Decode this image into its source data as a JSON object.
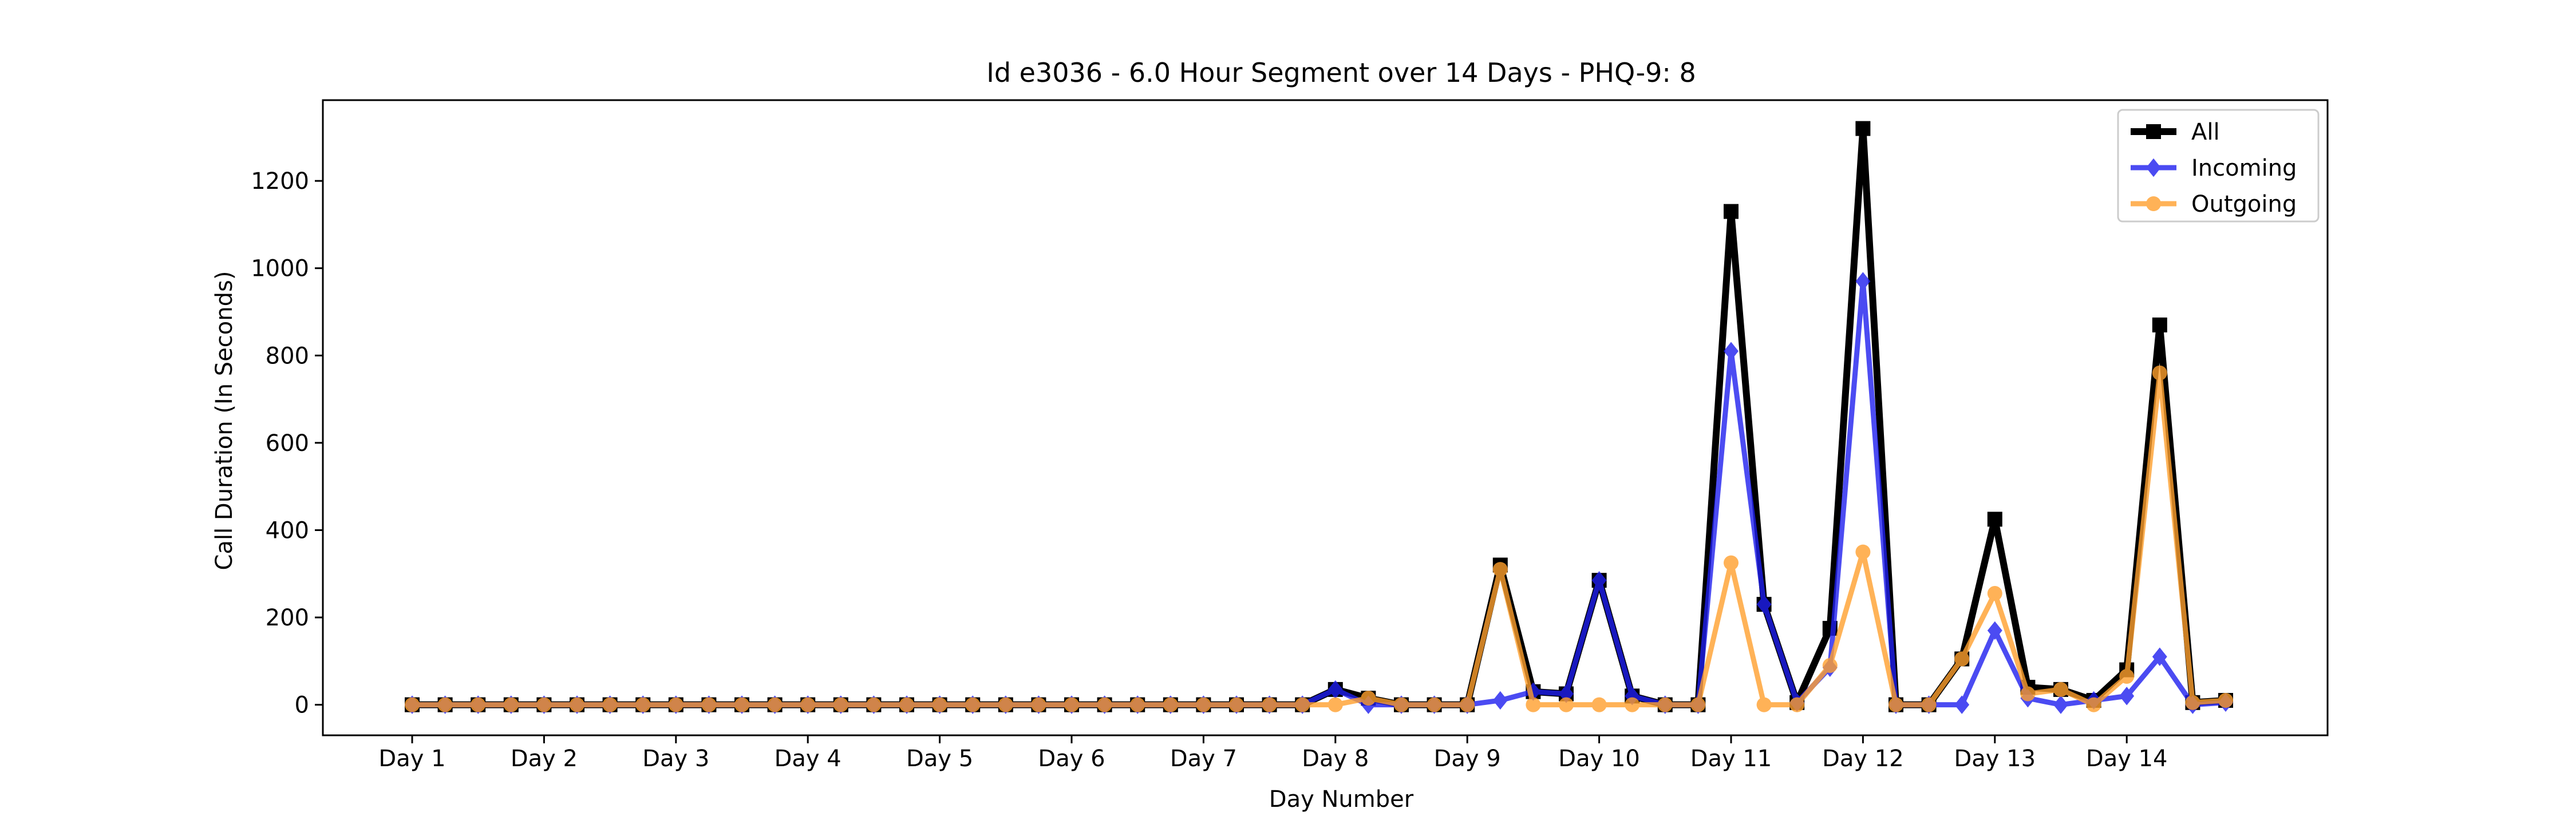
{
  "chart_data": {
    "type": "line",
    "title": "Id e3036 - 6.0 Hour Segment over 14 Days - PHQ-9: 8",
    "xlabel": "Day Number",
    "ylabel": "Call Duration (In Seconds)",
    "x_tick_labels": [
      "Day 1",
      "Day 2",
      "Day 3",
      "Day 4",
      "Day 5",
      "Day 6",
      "Day 7",
      "Day 8",
      "Day 9",
      "Day 10",
      "Day 11",
      "Day 12",
      "Day 13",
      "Day 14"
    ],
    "y_ticks": [
      0,
      200,
      400,
      600,
      800,
      1000,
      1200
    ],
    "ylim": [
      -70,
      1385
    ],
    "grid": false,
    "legend_position": "top-right",
    "series": [
      {
        "name": "All",
        "color": "#000000",
        "marker": "square",
        "values": [
          0,
          0,
          0,
          0,
          0,
          0,
          0,
          0,
          0,
          0,
          0,
          0,
          0,
          0,
          0,
          0,
          0,
          0,
          0,
          0,
          0,
          0,
          0,
          0,
          0,
          0,
          0,
          0,
          35,
          15,
          0,
          0,
          0,
          320,
          30,
          25,
          285,
          20,
          0,
          0,
          1130,
          230,
          5,
          175,
          1320,
          0,
          0,
          105,
          425,
          40,
          35,
          10,
          80,
          870,
          5,
          10
        ]
      },
      {
        "name": "Incoming",
        "color": "#1f1fef",
        "marker": "diamond",
        "values": [
          0,
          0,
          0,
          0,
          0,
          0,
          0,
          0,
          0,
          0,
          0,
          0,
          0,
          0,
          0,
          0,
          0,
          0,
          0,
          0,
          0,
          0,
          0,
          0,
          0,
          0,
          0,
          0,
          35,
          0,
          0,
          0,
          0,
          10,
          30,
          25,
          285,
          20,
          0,
          0,
          810,
          230,
          5,
          85,
          970,
          0,
          0,
          0,
          170,
          15,
          0,
          10,
          20,
          110,
          0,
          5
        ]
      },
      {
        "name": "Outgoing",
        "color": "#ffa02e",
        "marker": "circle",
        "values": [
          0,
          0,
          0,
          0,
          0,
          0,
          0,
          0,
          0,
          0,
          0,
          0,
          0,
          0,
          0,
          0,
          0,
          0,
          0,
          0,
          0,
          0,
          0,
          0,
          0,
          0,
          0,
          0,
          0,
          15,
          0,
          0,
          0,
          310,
          0,
          0,
          0,
          0,
          0,
          0,
          325,
          0,
          0,
          90,
          350,
          0,
          0,
          105,
          255,
          25,
          35,
          0,
          65,
          760,
          5,
          10
        ]
      }
    ]
  }
}
